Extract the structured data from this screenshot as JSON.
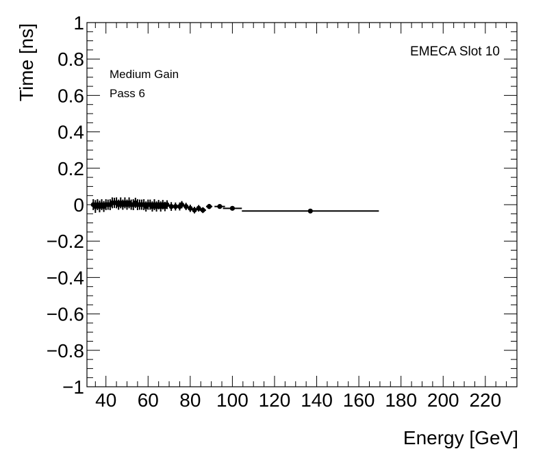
{
  "chart_data": {
    "type": "scatter",
    "title": "",
    "xlabel": "Energy [GeV]",
    "ylabel": "Time [ns]",
    "xlim": [
      31,
      235
    ],
    "ylim": [
      -1,
      1
    ],
    "x_ticks": [
      40,
      60,
      80,
      100,
      120,
      140,
      160,
      180,
      200,
      220
    ],
    "x_tick_labels": [
      "40",
      "60",
      "80",
      "100",
      "120",
      "140",
      "160",
      "180",
      "200",
      "220"
    ],
    "y_ticks": [
      -1,
      -0.8,
      -0.6,
      -0.4,
      -0.2,
      0,
      0.2,
      0.4,
      0.6,
      0.8,
      1
    ],
    "y_tick_labels": [
      "−1",
      "−0.8",
      "−0.6",
      "−0.4",
      "−0.2",
      "0",
      "0.2",
      "0.4",
      "0.6",
      "0.8",
      "1"
    ],
    "grid": false,
    "annotations": {
      "slot_label": "EMECA Slot 10",
      "gain_label": "Medium Gain",
      "pass_label": "Pass 6"
    },
    "points": [
      {
        "x": 34,
        "y": 0.0,
        "xerr": 0.5,
        "yerr": 0.03
      },
      {
        "x": 35,
        "y": -0.01,
        "xerr": 0.5,
        "yerr": 0.035
      },
      {
        "x": 36,
        "y": 0.0,
        "xerr": 0.5,
        "yerr": 0.03
      },
      {
        "x": 37,
        "y": -0.01,
        "xerr": 0.5,
        "yerr": 0.032
      },
      {
        "x": 38,
        "y": 0.0,
        "xerr": 0.5,
        "yerr": 0.03
      },
      {
        "x": 39,
        "y": -0.01,
        "xerr": 0.5,
        "yerr": 0.03
      },
      {
        "x": 40,
        "y": 0.0,
        "xerr": 0.5,
        "yerr": 0.03
      },
      {
        "x": 41,
        "y": 0.0,
        "xerr": 0.5,
        "yerr": 0.028
      },
      {
        "x": 42,
        "y": 0.0,
        "xerr": 0.5,
        "yerr": 0.03
      },
      {
        "x": 43,
        "y": 0.01,
        "xerr": 0.5,
        "yerr": 0.03
      },
      {
        "x": 44,
        "y": 0.01,
        "xerr": 0.5,
        "yerr": 0.028
      },
      {
        "x": 45,
        "y": 0.01,
        "xerr": 0.5,
        "yerr": 0.03
      },
      {
        "x": 46,
        "y": 0.0,
        "xerr": 0.5,
        "yerr": 0.028
      },
      {
        "x": 47,
        "y": 0.01,
        "xerr": 0.5,
        "yerr": 0.03
      },
      {
        "x": 48,
        "y": 0.0,
        "xerr": 0.5,
        "yerr": 0.028
      },
      {
        "x": 49,
        "y": 0.01,
        "xerr": 0.5,
        "yerr": 0.03
      },
      {
        "x": 50,
        "y": 0.0,
        "xerr": 0.5,
        "yerr": 0.028
      },
      {
        "x": 51,
        "y": 0.01,
        "xerr": 0.5,
        "yerr": 0.03
      },
      {
        "x": 52,
        "y": 0.0,
        "xerr": 0.5,
        "yerr": 0.028
      },
      {
        "x": 53,
        "y": 0.0,
        "xerr": 0.5,
        "yerr": 0.03
      },
      {
        "x": 54,
        "y": 0.01,
        "xerr": 0.5,
        "yerr": 0.028
      },
      {
        "x": 55,
        "y": 0.0,
        "xerr": 0.5,
        "yerr": 0.03
      },
      {
        "x": 56,
        "y": 0.0,
        "xerr": 0.5,
        "yerr": 0.028
      },
      {
        "x": 57,
        "y": 0.0,
        "xerr": 0.5,
        "yerr": 0.028
      },
      {
        "x": 58,
        "y": 0.0,
        "xerr": 0.5,
        "yerr": 0.03
      },
      {
        "x": 59,
        "y": -0.01,
        "xerr": 0.5,
        "yerr": 0.028
      },
      {
        "x": 60,
        "y": 0.0,
        "xerr": 0.5,
        "yerr": 0.028
      },
      {
        "x": 61,
        "y": 0.0,
        "xerr": 0.5,
        "yerr": 0.028
      },
      {
        "x": 62,
        "y": -0.01,
        "xerr": 0.5,
        "yerr": 0.028
      },
      {
        "x": 63,
        "y": 0.0,
        "xerr": 0.5,
        "yerr": 0.03
      },
      {
        "x": 64,
        "y": -0.01,
        "xerr": 0.5,
        "yerr": 0.028
      },
      {
        "x": 65,
        "y": 0.0,
        "xerr": 0.5,
        "yerr": 0.026
      },
      {
        "x": 66,
        "y": -0.01,
        "xerr": 0.5,
        "yerr": 0.028
      },
      {
        "x": 67,
        "y": 0.0,
        "xerr": 0.5,
        "yerr": 0.026
      },
      {
        "x": 68,
        "y": -0.01,
        "xerr": 0.5,
        "yerr": 0.026
      },
      {
        "x": 69,
        "y": 0.0,
        "xerr": 0.5,
        "yerr": 0.024
      },
      {
        "x": 71,
        "y": -0.01,
        "xerr": 1.0,
        "yerr": 0.024
      },
      {
        "x": 73,
        "y": -0.01,
        "xerr": 1.0,
        "yerr": 0.022
      },
      {
        "x": 75,
        "y": -0.01,
        "xerr": 1.0,
        "yerr": 0.022
      },
      {
        "x": 76,
        "y": 0.0,
        "xerr": 1.0,
        "yerr": 0.02
      },
      {
        "x": 78,
        "y": -0.01,
        "xerr": 1.0,
        "yerr": 0.02
      },
      {
        "x": 80,
        "y": -0.02,
        "xerr": 1.0,
        "yerr": 0.02
      },
      {
        "x": 82,
        "y": -0.03,
        "xerr": 1.0,
        "yerr": 0.018
      },
      {
        "x": 84,
        "y": -0.02,
        "xerr": 1.0,
        "yerr": 0.018
      },
      {
        "x": 86,
        "y": -0.03,
        "xerr": 1.5,
        "yerr": 0.016
      },
      {
        "x": 89,
        "y": -0.01,
        "xerr": 1.5,
        "yerr": 0.014
      },
      {
        "x": 94,
        "y": -0.01,
        "xerr": 2.5,
        "yerr": 0.012
      },
      {
        "x": 100,
        "y": -0.02,
        "xerr": 4.5,
        "yerr": 0.01
      },
      {
        "x": 137,
        "y": -0.035,
        "xerr": 32.5,
        "yerr": 0.008
      }
    ]
  }
}
